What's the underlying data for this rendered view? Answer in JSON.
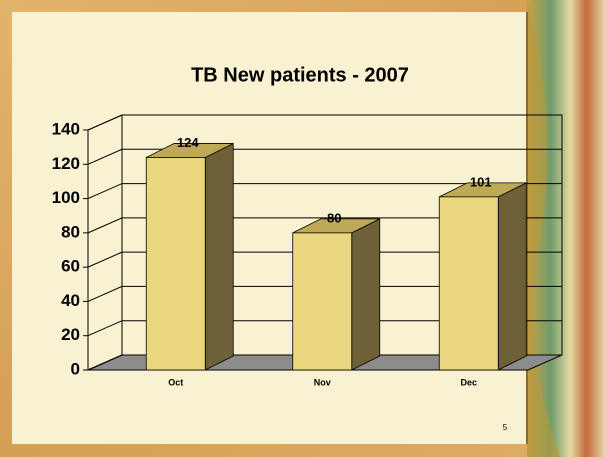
{
  "chart_data": {
    "type": "bar3d",
    "title": "TB New patients - 2007",
    "categories": [
      "Oct",
      "Nov",
      "Dec"
    ],
    "values": [
      124,
      80,
      101
    ],
    "color": "#ead67e",
    "ylim": [
      0,
      140
    ],
    "yticks": [
      0,
      20,
      40,
      60,
      80,
      100,
      120,
      140
    ],
    "grid": true
  },
  "page_number": "5"
}
